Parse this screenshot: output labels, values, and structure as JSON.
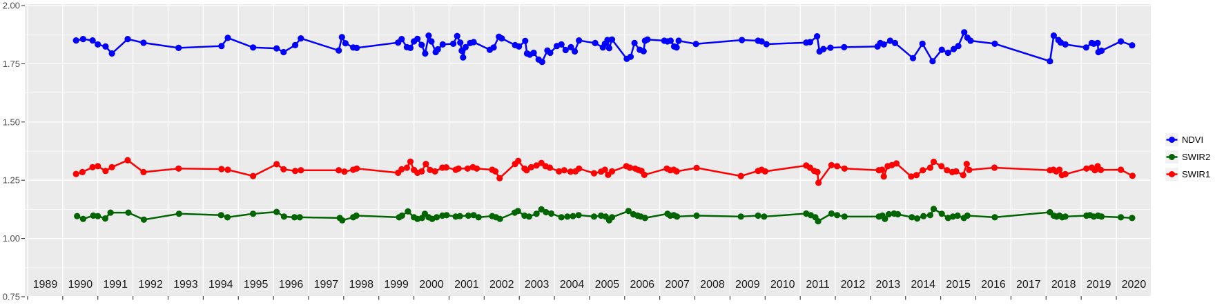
{
  "figure": {
    "background": "#FFFFFF",
    "panel_background": "#EBEBEB",
    "gridline_color": "#FFFFFF",
    "legend_key_background": "#F2F2F2",
    "tick_color": "#333333"
  },
  "axes": {
    "y": {
      "range": [
        0.75,
        2.0
      ],
      "tick_labels": [
        "2.00",
        "1.75",
        "1.50",
        "1.25",
        "1.00",
        "0.75"
      ]
    },
    "x": {
      "range": [
        1989,
        2021
      ],
      "tick_labels": [
        "1989",
        "1990",
        "1991",
        "1992",
        "1993",
        "1994",
        "1995",
        "1996",
        "1997",
        "1998",
        "1999",
        "2000",
        "2001",
        "2002",
        "2003",
        "2004",
        "2005",
        "2006",
        "2007",
        "2008",
        "2009",
        "2010",
        "2011",
        "2012",
        "2013",
        "2014",
        "2015",
        "2016",
        "2017",
        "2018",
        "2019",
        "2020"
      ]
    }
  },
  "legend": {
    "position": "right"
  },
  "chart_data": {
    "type": "line",
    "title": "",
    "xlabel": "",
    "ylabel": "",
    "x_range": [
      1989,
      2021
    ],
    "y_range": [
      0.75,
      2.0
    ],
    "grid": "on",
    "legend_position": "right",
    "series": [
      {
        "name": "NDVI",
        "color": "#0000FF",
        "x": [
          1990.38,
          1990.58,
          1990.85,
          1991.0,
          1991.22,
          1991.4,
          1991.85,
          1992.3,
          1993.3,
          1994.52,
          1994.7,
          1995.42,
          1996.09,
          1996.29,
          1996.62,
          1996.78,
          1997.86,
          1997.95,
          1998.05,
          1998.27,
          1998.37,
          1999.55,
          1999.65,
          1999.8,
          1999.9,
          2000.0,
          2000.1,
          2000.22,
          2000.32,
          2000.42,
          2000.5,
          2000.62,
          2000.68,
          2000.82,
          2001.12,
          2001.23,
          2001.32,
          2001.36,
          2001.4,
          2001.47,
          2001.6,
          2001.7,
          2002.16,
          2002.27,
          2002.42,
          2002.5,
          2002.88,
          2002.99,
          2003.17,
          2003.22,
          2003.3,
          2003.41,
          2003.55,
          2003.65,
          2003.8,
          2003.88,
          2004.07,
          2004.2,
          2004.32,
          2004.47,
          2004.58,
          2004.7,
          2005.16,
          2005.38,
          2005.44,
          2005.51,
          2005.56,
          2005.64,
          2006.06,
          2006.17,
          2006.28,
          2006.43,
          2006.54,
          2006.58,
          2006.65,
          2007.13,
          2007.22,
          2007.31,
          2007.41,
          2007.48,
          2007.54,
          2008.03,
          2009.34,
          2009.8,
          2009.9,
          2010.04,
          2011.17,
          2011.28,
          2011.48,
          2011.55,
          2011.66,
          2011.86,
          2012.25,
          2013.2,
          2013.28,
          2013.38,
          2013.56,
          2013.7,
          2014.21,
          2014.48,
          2014.77,
          2015.03,
          2015.21,
          2015.37,
          2015.5,
          2015.67,
          2015.76,
          2015.85,
          2016.54,
          2018.11,
          2018.22,
          2018.35,
          2018.42,
          2018.55,
          2019.14,
          2019.3,
          2019.36,
          2019.47,
          2019.49,
          2019.58,
          2020.13,
          2020.45
        ],
        "y": [
          1.85,
          1.856,
          1.85,
          1.833,
          1.824,
          1.794,
          1.856,
          1.84,
          1.818,
          1.826,
          1.861,
          1.82,
          1.816,
          1.8,
          1.83,
          1.859,
          1.807,
          1.864,
          1.838,
          1.82,
          1.818,
          1.841,
          1.856,
          1.821,
          1.818,
          1.846,
          1.857,
          1.831,
          1.794,
          1.871,
          1.846,
          1.8,
          1.812,
          1.833,
          1.836,
          1.869,
          1.841,
          1.806,
          1.777,
          1.821,
          1.839,
          1.843,
          1.81,
          1.82,
          1.866,
          1.859,
          1.83,
          1.824,
          1.848,
          1.794,
          1.789,
          1.797,
          1.768,
          1.758,
          1.807,
          1.797,
          1.826,
          1.833,
          1.809,
          1.821,
          1.803,
          1.85,
          1.839,
          1.82,
          1.836,
          1.852,
          1.817,
          1.854,
          1.771,
          1.78,
          1.839,
          1.81,
          1.804,
          1.849,
          1.854,
          1.849,
          1.846,
          1.849,
          1.824,
          1.82,
          1.849,
          1.835,
          1.852,
          1.849,
          1.846,
          1.834,
          1.841,
          1.843,
          1.868,
          1.803,
          1.813,
          1.819,
          1.821,
          1.824,
          1.839,
          1.833,
          1.849,
          1.839,
          1.774,
          1.836,
          1.761,
          1.81,
          1.797,
          1.813,
          1.826,
          1.885,
          1.862,
          1.849,
          1.836,
          1.761,
          1.871,
          1.852,
          1.841,
          1.833,
          1.82,
          1.839,
          1.836,
          1.839,
          1.8,
          1.806,
          1.846,
          1.829
        ]
      },
      {
        "name": "SWIR2",
        "color": "#006400",
        "x": [
          1990.41,
          1990.58,
          1990.87,
          1991.0,
          1991.21,
          1991.36,
          1991.87,
          1992.31,
          1993.31,
          1994.51,
          1994.69,
          1995.42,
          1996.09,
          1996.3,
          1996.6,
          1996.75,
          1997.89,
          1997.96,
          1998.27,
          1998.36,
          1999.58,
          1999.66,
          1999.83,
          2000.0,
          2000.1,
          2000.23,
          2000.31,
          2000.42,
          2000.52,
          2000.65,
          2000.81,
          2000.93,
          2001.19,
          2001.31,
          2001.55,
          2001.7,
          2001.84,
          2002.23,
          2002.34,
          2002.45,
          2002.87,
          2002.96,
          2003.15,
          2003.28,
          2003.49,
          2003.63,
          2003.76,
          2003.91,
          2004.2,
          2004.37,
          2004.53,
          2004.69,
          2005.13,
          2005.33,
          2005.46,
          2005.56,
          2005.64,
          2006.11,
          2006.25,
          2006.37,
          2006.46,
          2006.58,
          2007.22,
          2007.3,
          2007.4,
          2007.49,
          2008.05,
          2009.31,
          2009.8,
          2009.97,
          2011.17,
          2011.3,
          2011.43,
          2011.51,
          2011.89,
          2012.05,
          2012.26,
          2013.24,
          2013.34,
          2013.41,
          2013.52,
          2013.67,
          2013.78,
          2014.18,
          2014.33,
          2014.51,
          2014.7,
          2014.8,
          2015.03,
          2015.21,
          2015.35,
          2015.48,
          2015.66,
          2015.76,
          2016.54,
          2018.11,
          2018.22,
          2018.3,
          2018.38,
          2018.46,
          2018.55,
          2019.15,
          2019.25,
          2019.36,
          2019.48,
          2019.58,
          2020.13,
          2020.45
        ],
        "y": [
          1.096,
          1.084,
          1.098,
          1.096,
          1.086,
          1.111,
          1.111,
          1.081,
          1.106,
          1.1,
          1.091,
          1.106,
          1.114,
          1.094,
          1.091,
          1.091,
          1.088,
          1.078,
          1.091,
          1.098,
          1.091,
          1.098,
          1.116,
          1.091,
          1.084,
          1.088,
          1.106,
          1.091,
          1.084,
          1.091,
          1.098,
          1.1,
          1.094,
          1.096,
          1.098,
          1.1,
          1.091,
          1.096,
          1.091,
          1.084,
          1.111,
          1.118,
          1.098,
          1.094,
          1.106,
          1.125,
          1.113,
          1.107,
          1.091,
          1.094,
          1.096,
          1.1,
          1.094,
          1.098,
          1.094,
          1.078,
          1.091,
          1.118,
          1.104,
          1.098,
          1.094,
          1.088,
          1.106,
          1.098,
          1.1,
          1.094,
          1.098,
          1.094,
          1.098,
          1.094,
          1.107,
          1.1,
          1.091,
          1.074,
          1.107,
          1.1,
          1.094,
          1.094,
          1.098,
          1.084,
          1.104,
          1.107,
          1.104,
          1.091,
          1.086,
          1.096,
          1.1,
          1.127,
          1.106,
          1.088,
          1.094,
          1.098,
          1.088,
          1.098,
          1.091,
          1.113,
          1.098,
          1.094,
          1.098,
          1.091,
          1.094,
          1.098,
          1.1,
          1.094,
          1.098,
          1.094,
          1.091,
          1.088
        ]
      },
      {
        "name": "SWIR1",
        "color": "#FF0000",
        "x": [
          1990.38,
          1990.56,
          1990.85,
          1991.0,
          1991.22,
          1991.4,
          1991.85,
          1992.3,
          1993.3,
          1994.52,
          1994.7,
          1995.42,
          1996.09,
          1996.29,
          1996.62,
          1996.78,
          1997.86,
          1998.02,
          1998.27,
          1998.37,
          1999.55,
          1999.65,
          1999.8,
          1999.9,
          2000.0,
          2000.1,
          2000.22,
          2000.34,
          2000.46,
          2000.6,
          2000.81,
          2000.92,
          2001.19,
          2001.27,
          2001.53,
          2001.68,
          2001.79,
          2002.23,
          2002.32,
          2002.44,
          2002.88,
          2002.97,
          2003.15,
          2003.21,
          2003.34,
          2003.49,
          2003.63,
          2003.75,
          2003.87,
          2004.13,
          2004.28,
          2004.46,
          2004.6,
          2004.7,
          2005.13,
          2005.33,
          2005.44,
          2005.53,
          2005.64,
          2006.05,
          2006.15,
          2006.3,
          2006.39,
          2006.48,
          2006.56,
          2007.2,
          2007.3,
          2007.4,
          2007.48,
          2008.05,
          2009.31,
          2009.8,
          2009.9,
          2010.0,
          2011.17,
          2011.28,
          2011.4,
          2011.49,
          2011.52,
          2011.89,
          2012.05,
          2012.26,
          2013.24,
          2013.33,
          2013.38,
          2013.49,
          2013.61,
          2013.74,
          2014.16,
          2014.31,
          2014.49,
          2014.7,
          2014.8,
          2015.02,
          2015.18,
          2015.33,
          2015.44,
          2015.64,
          2015.74,
          2015.81,
          2016.53,
          2018.11,
          2018.21,
          2018.29,
          2018.38,
          2018.45,
          2018.55,
          2019.15,
          2019.3,
          2019.39,
          2019.47,
          2019.56,
          2020.13,
          2020.46
        ],
        "y": [
          1.277,
          1.285,
          1.306,
          1.31,
          1.29,
          1.306,
          1.336,
          1.285,
          1.3,
          1.298,
          1.295,
          1.268,
          1.319,
          1.297,
          1.29,
          1.293,
          1.293,
          1.287,
          1.295,
          1.3,
          1.282,
          1.297,
          1.304,
          1.33,
          1.294,
          1.282,
          1.288,
          1.32,
          1.294,
          1.288,
          1.304,
          1.305,
          1.295,
          1.3,
          1.3,
          1.306,
          1.3,
          1.295,
          1.288,
          1.259,
          1.32,
          1.333,
          1.3,
          1.293,
          1.306,
          1.313,
          1.324,
          1.31,
          1.304,
          1.288,
          1.293,
          1.287,
          1.288,
          1.3,
          1.28,
          1.287,
          1.295,
          1.273,
          1.288,
          1.31,
          1.304,
          1.3,
          1.294,
          1.29,
          1.273,
          1.3,
          1.293,
          1.295,
          1.288,
          1.303,
          1.268,
          1.29,
          1.295,
          1.288,
          1.313,
          1.304,
          1.29,
          1.285,
          1.239,
          1.315,
          1.31,
          1.3,
          1.293,
          1.295,
          1.266,
          1.31,
          1.315,
          1.322,
          1.266,
          1.272,
          1.293,
          1.304,
          1.329,
          1.31,
          1.293,
          1.285,
          1.288,
          1.272,
          1.32,
          1.294,
          1.304,
          1.293,
          1.295,
          1.288,
          1.295,
          1.272,
          1.276,
          1.3,
          1.304,
          1.293,
          1.31,
          1.294,
          1.295,
          1.269
        ]
      }
    ]
  }
}
